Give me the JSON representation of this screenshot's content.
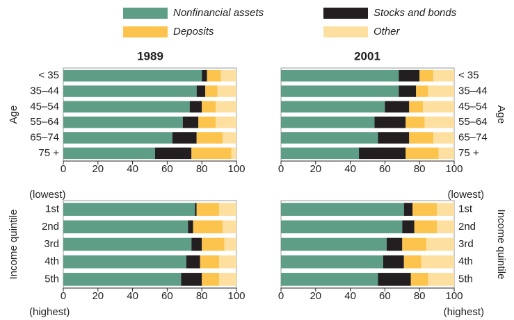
{
  "chart_data": [
    {
      "type": "bar",
      "orientation": "horizontal",
      "stacked": true,
      "title": "1989",
      "ylabel": "Age",
      "categories": [
        "< 35",
        "35–44",
        "45–54",
        "55–64",
        "65–74",
        "75 +"
      ],
      "series": [
        {
          "name": "Nonfinancial assets",
          "color": "#5f9e86",
          "values": [
            80,
            77,
            73,
            69,
            63,
            53
          ]
        },
        {
          "name": "Stocks and bonds",
          "color": "#231f20",
          "values": [
            3,
            5,
            7,
            9,
            14,
            21
          ]
        },
        {
          "name": "Deposits",
          "color": "#fcc34d",
          "values": [
            8,
            7,
            8,
            10,
            15,
            23
          ]
        },
        {
          "name": "Other",
          "color": "#fde0a0",
          "values": [
            9,
            11,
            12,
            12,
            8,
            3
          ]
        }
      ],
      "xlim": [
        0,
        100
      ],
      "xticks": [
        0,
        20,
        40,
        60,
        80,
        100
      ]
    },
    {
      "type": "bar",
      "orientation": "horizontal",
      "stacked": true,
      "title": "2001",
      "ylabel": "Age",
      "categories": [
        "< 35",
        "35–44",
        "45–54",
        "55–64",
        "65–74",
        "75 +"
      ],
      "series": [
        {
          "name": "Nonfinancial assets",
          "color": "#5f9e86",
          "values": [
            68,
            68,
            60,
            54,
            56,
            45
          ]
        },
        {
          "name": "Stocks and bonds",
          "color": "#231f20",
          "values": [
            12,
            10,
            14,
            18,
            18,
            27
          ]
        },
        {
          "name": "Deposits",
          "color": "#fcc34d",
          "values": [
            8,
            7,
            8,
            11,
            14,
            19
          ]
        },
        {
          "name": "Other",
          "color": "#fde0a0",
          "values": [
            12,
            15,
            18,
            17,
            12,
            9
          ]
        }
      ],
      "xlim": [
        0,
        100
      ],
      "xticks": [
        0,
        20,
        40,
        60,
        80,
        100
      ]
    },
    {
      "type": "bar",
      "orientation": "horizontal",
      "stacked": true,
      "ylabel": "Income quintile",
      "annotations": [
        "(lowest)",
        "(highest)"
      ],
      "categories": [
        "1st",
        "2nd",
        "3rd",
        "4th",
        "5th"
      ],
      "series": [
        {
          "name": "Nonfinancial assets",
          "color": "#5f9e86",
          "values": [
            76,
            72,
            74,
            71,
            68
          ]
        },
        {
          "name": "Stocks and bonds",
          "color": "#231f20",
          "values": [
            1,
            3,
            6,
            8,
            12
          ]
        },
        {
          "name": "Deposits",
          "color": "#fcc34d",
          "values": [
            13,
            17,
            13,
            11,
            10
          ]
        },
        {
          "name": "Other",
          "color": "#fde0a0",
          "values": [
            10,
            8,
            7,
            10,
            10
          ]
        }
      ],
      "xlim": [
        0,
        100
      ],
      "xticks": [
        0,
        20,
        40,
        60,
        80,
        100
      ]
    },
    {
      "type": "bar",
      "orientation": "horizontal",
      "stacked": true,
      "ylabel": "Income quintile",
      "annotations": [
        "(lowest)",
        "(highest)"
      ],
      "categories": [
        "1st",
        "2nd",
        "3rd",
        "4th",
        "5th"
      ],
      "series": [
        {
          "name": "Nonfinancial assets",
          "color": "#5f9e86",
          "values": [
            71,
            70,
            61,
            59,
            56
          ]
        },
        {
          "name": "Stocks and bonds",
          "color": "#231f20",
          "values": [
            5,
            7,
            9,
            12,
            19
          ]
        },
        {
          "name": "Deposits",
          "color": "#fcc34d",
          "values": [
            14,
            13,
            14,
            10,
            10
          ]
        },
        {
          "name": "Other",
          "color": "#fde0a0",
          "values": [
            10,
            10,
            16,
            19,
            15
          ]
        }
      ],
      "xlim": [
        0,
        100
      ],
      "xticks": [
        0,
        20,
        40,
        60,
        80,
        100
      ]
    }
  ]
}
